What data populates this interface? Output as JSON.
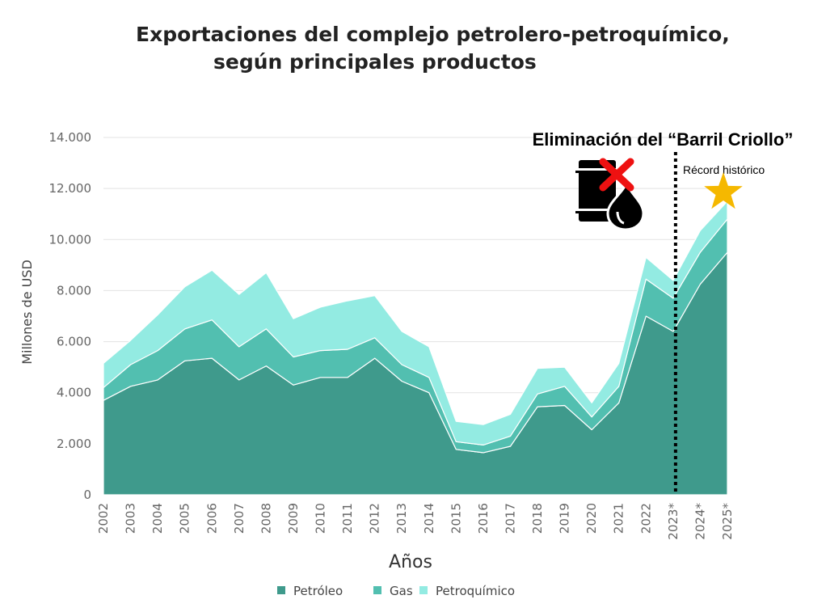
{
  "chart_data": {
    "type": "area",
    "stacked": true,
    "title": "Exportaciones del complejo petrolero-petroquímico, según principales productos",
    "title_lines": [
      "Exportaciones del complejo petrolero-petroquímico,",
      "según principales productos"
    ],
    "xlabel": "Años",
    "ylabel": "Millones de USD",
    "ylim": [
      0,
      14000
    ],
    "yticks": [
      0,
      2000,
      4000,
      6000,
      8000,
      10000,
      12000,
      14000
    ],
    "ytick_labels": [
      "0",
      "2.000",
      "4.000",
      "6.000",
      "8.000",
      "10.000",
      "12.000",
      "14.000"
    ],
    "grid": true,
    "legend_position": "bottom",
    "categories": [
      "2002",
      "2003",
      "2004",
      "2005",
      "2006",
      "2007",
      "2008",
      "2009",
      "2010",
      "2011",
      "2012",
      "2013",
      "2014",
      "2015",
      "2016",
      "2017",
      "2018",
      "2019",
      "2020",
      "2021",
      "2022",
      "2023*",
      "2024*",
      "2025*"
    ],
    "series": [
      {
        "name": "Petróleo",
        "color": "#3f9a8c",
        "values": [
          3700,
          4250,
          4500,
          5250,
          5350,
          4500,
          5050,
          4300,
          4600,
          4600,
          5350,
          4450,
          4000,
          1780,
          1650,
          1900,
          3450,
          3500,
          2550,
          3600,
          7000,
          6400,
          8250,
          9500
        ]
      },
      {
        "name": "Gas",
        "color": "#52bfb0",
        "values": [
          500,
          850,
          1150,
          1250,
          1500,
          1300,
          1450,
          1100,
          1050,
          1100,
          800,
          650,
          600,
          300,
          300,
          400,
          500,
          750,
          500,
          650,
          1450,
          1300,
          1250,
          1300
        ]
      },
      {
        "name": "Petroquímico",
        "color": "#93ebe2",
        "values": [
          950,
          950,
          1400,
          1650,
          1950,
          2050,
          2200,
          1500,
          1700,
          1900,
          1650,
          1300,
          1200,
          800,
          800,
          850,
          1000,
          750,
          550,
          900,
          850,
          700,
          850,
          700
        ]
      }
    ],
    "annotations": {
      "event_label": "Eliminación del “Barril Criollo”",
      "event_year": "2023*",
      "event_line": "dotted",
      "record_label": "Récord histórico",
      "record_year": "2025*",
      "record_icon": "star-icon",
      "barrel_icon": "oil-barrel-crossed-icon"
    }
  }
}
